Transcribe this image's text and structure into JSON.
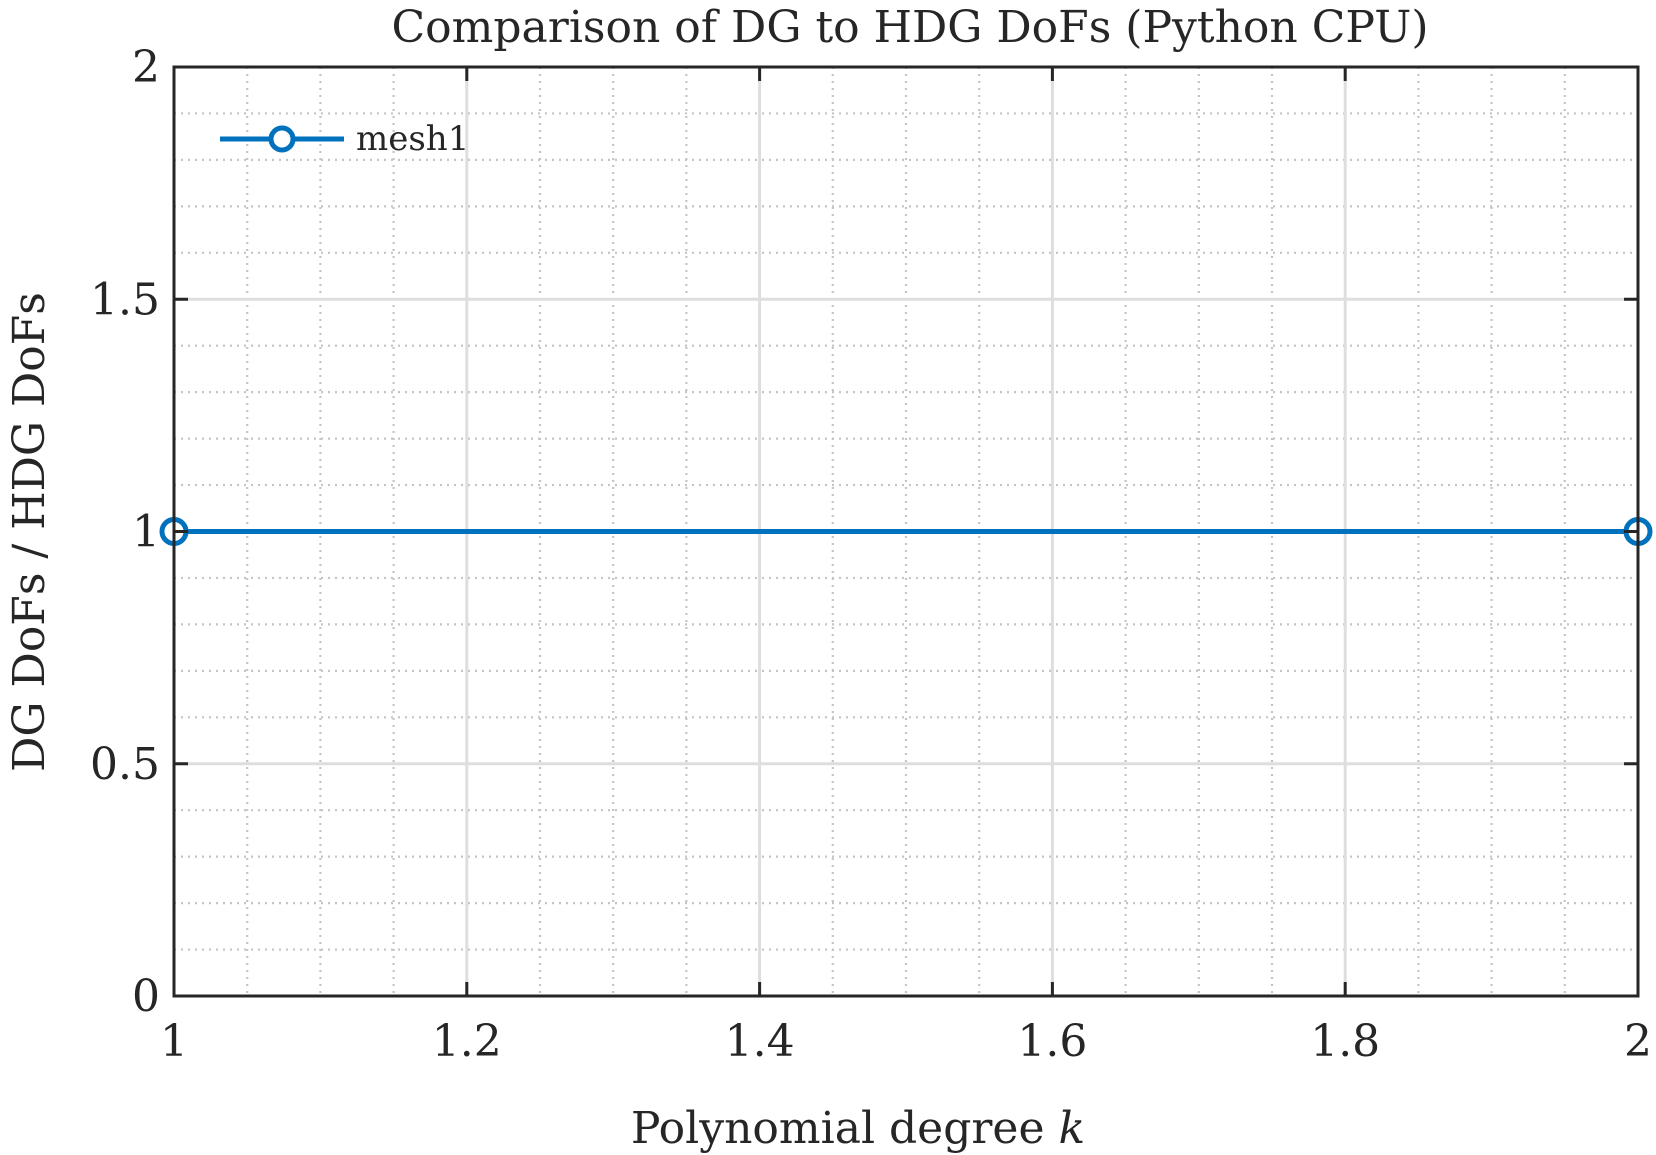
{
  "chart_data": {
    "type": "line",
    "title": "Comparison of DG to HDG DoFs (Python CPU)",
    "xlabel_text": "Polynomial degree ",
    "xlabel_var": "k",
    "ylabel": "DG DoFs / HDG DoFs",
    "xlim": [
      1,
      2
    ],
    "ylim": [
      0,
      2
    ],
    "xticks": [
      1,
      1.2,
      1.4,
      1.6,
      1.8,
      2
    ],
    "xtick_labels": [
      "1",
      "1.2",
      "1.4",
      "1.6",
      "1.8",
      "2"
    ],
    "yticks": [
      0,
      0.5,
      1,
      1.5,
      2
    ],
    "ytick_labels": [
      "0",
      "0.5",
      "1",
      "1.5",
      "2"
    ],
    "x_minor_step": 0.05,
    "y_minor_step": 0.1,
    "grid": true,
    "minor_grid": true,
    "legend_position": "top-left",
    "series": [
      {
        "name": "mesh1",
        "x": [
          1,
          2
        ],
        "values": [
          1,
          1
        ],
        "color": "#0072BD",
        "marker": "circle"
      }
    ]
  }
}
